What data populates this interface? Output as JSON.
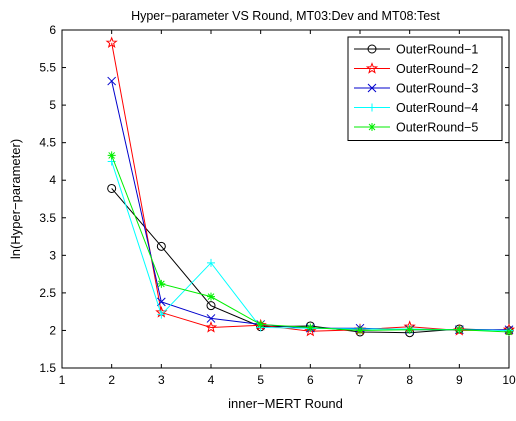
{
  "chart_data": {
    "type": "line",
    "title": "Hyper−parameter VS Round, MT03:Dev and MT08:Test",
    "xlabel": "inner−MERT Round",
    "ylabel": "ln(Hyper−parameter)",
    "xlim": [
      1,
      10
    ],
    "ylim": [
      1.5,
      6
    ],
    "xticks": [
      1,
      2,
      3,
      4,
      5,
      6,
      7,
      8,
      9,
      10
    ],
    "yticks": [
      1.5,
      2,
      2.5,
      3,
      3.5,
      4,
      4.5,
      5,
      5.5,
      6
    ],
    "x": [
      2,
      3,
      4,
      5,
      6,
      7,
      8,
      9,
      10
    ],
    "legend_position": "top-right",
    "grid": false,
    "series": [
      {
        "name": "OuterRound−1",
        "color": "#000000",
        "marker": "circle",
        "values": [
          3.89,
          3.12,
          2.33,
          2.05,
          2.06,
          1.98,
          1.97,
          2.02,
          2.0
        ]
      },
      {
        "name": "OuterRound−2",
        "color": "#ff0000",
        "marker": "star",
        "values": [
          5.83,
          2.24,
          2.04,
          2.07,
          1.99,
          2.01,
          2.05,
          2.0,
          2.01
        ]
      },
      {
        "name": "OuterRound−3",
        "color": "#0000cc",
        "marker": "x",
        "values": [
          5.32,
          2.38,
          2.16,
          2.08,
          2.03,
          2.03,
          2.01,
          2.01,
          2.01
        ]
      },
      {
        "name": "OuterRound−4",
        "color": "#00ffff",
        "marker": "plus",
        "values": [
          4.25,
          2.21,
          2.9,
          2.04,
          2.03,
          2.02,
          2.02,
          2.01,
          2.0
        ]
      },
      {
        "name": "OuterRound−5",
        "color": "#00ee00",
        "marker": "asterisk",
        "values": [
          4.33,
          2.62,
          2.45,
          2.08,
          2.04,
          2.0,
          2.01,
          2.01,
          1.98
        ]
      }
    ]
  }
}
